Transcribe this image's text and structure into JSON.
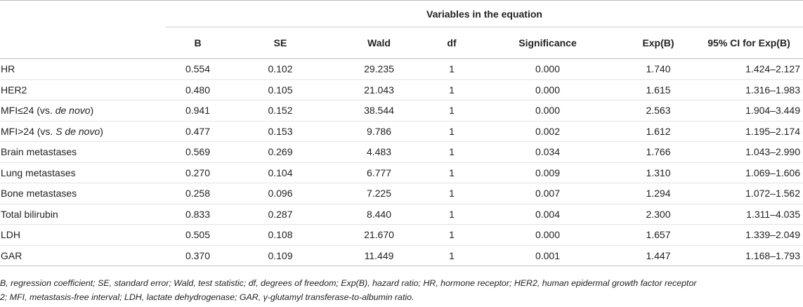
{
  "table": {
    "group_header": "Variables in the equation",
    "columns": [
      "B",
      "SE",
      "Wald",
      "df",
      "Significance",
      "Exp(B)",
      "95% CI for Exp(B)"
    ],
    "rows": [
      {
        "label_parts": [
          "HR"
        ],
        "B": "0.554",
        "SE": "0.102",
        "Wald": "29.235",
        "df": "1",
        "Significance": "0.000",
        "ExpB": "1.740",
        "CI": "1.424–2.127"
      },
      {
        "label_parts": [
          "HER2"
        ],
        "B": "0.480",
        "SE": "0.105",
        "Wald": "21.043",
        "df": "1",
        "Significance": "0.000",
        "ExpB": "1.615",
        "CI": "1.316–1.983"
      },
      {
        "label_parts": [
          "MFI≤24 (vs. ",
          "de novo",
          ")"
        ],
        "B": "0.941",
        "SE": "0.152",
        "Wald": "38.544",
        "df": "1",
        "Significance": "0.000",
        "ExpB": "2.563",
        "CI": "1.904–3.449"
      },
      {
        "label_parts": [
          "MFI>24 (vs. ",
          "S de novo",
          ")"
        ],
        "B": "0.477",
        "SE": "0.153",
        "Wald": "9.786",
        "df": "1",
        "Significance": "0.002",
        "ExpB": "1.612",
        "CI": "1.195–2.174"
      },
      {
        "label_parts": [
          "Brain metastases"
        ],
        "B": "0.569",
        "SE": "0.269",
        "Wald": "4.483",
        "df": "1",
        "Significance": "0.034",
        "ExpB": "1.766",
        "CI": "1.043–2.990"
      },
      {
        "label_parts": [
          "Lung metastases"
        ],
        "B": "0.270",
        "SE": "0.104",
        "Wald": "6.777",
        "df": "1",
        "Significance": "0.009",
        "ExpB": "1.310",
        "CI": "1.069–1.606"
      },
      {
        "label_parts": [
          "Bone metastases"
        ],
        "B": "0.258",
        "SE": "0.096",
        "Wald": "7.225",
        "df": "1",
        "Significance": "0.007",
        "ExpB": "1.294",
        "CI": "1.072–1.562"
      },
      {
        "label_parts": [
          "Total bilirubin"
        ],
        "B": "0.833",
        "SE": "0.287",
        "Wald": "8.440",
        "df": "1",
        "Significance": "0.004",
        "ExpB": "2.300",
        "CI": "1.311–4.035"
      },
      {
        "label_parts": [
          "LDH"
        ],
        "B": "0.505",
        "SE": "0.108",
        "Wald": "21.670",
        "df": "1",
        "Significance": "0.000",
        "ExpB": "1.657",
        "CI": "1.339–2.049"
      },
      {
        "label_parts": [
          "GAR"
        ],
        "B": "0.370",
        "SE": "0.109",
        "Wald": "11.449",
        "df": "1",
        "Significance": "0.001",
        "ExpB": "1.447",
        "CI": "1.168–1.793"
      }
    ]
  },
  "footnote": {
    "line1": "B, regression coefficient; SE, standard error; Wald, test statistic; df, degrees of freedom; Exp(B), hazard ratio; HR, hormone receptor; HER2, human epidermal growth factor receptor",
    "line2": "2; MFI, metastasis-free interval; LDH, lactate dehydrogenase; GAR, γ-glutamyl transferase-to-albumin ratio."
  }
}
